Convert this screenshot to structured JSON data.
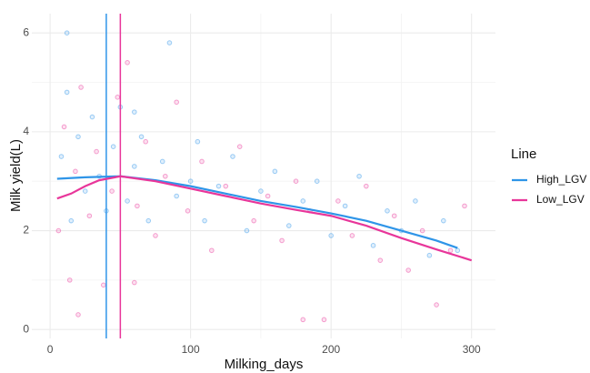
{
  "chart_data": {
    "type": "scatter",
    "x_label": "Milking_days",
    "y_label": "Milk yield(L)",
    "xlim": [
      -13,
      317
    ],
    "ylim": [
      -0.18,
      6.39
    ],
    "xticks": [
      0,
      100,
      200,
      300
    ],
    "yticks": [
      0,
      2,
      4,
      6
    ],
    "x_minor": [
      50,
      150,
      250
    ],
    "y_minor": [
      1,
      3,
      5
    ],
    "grid": true,
    "legend_title": "Line",
    "legend_position": "right",
    "series": [
      {
        "name": "High_LGV",
        "color": "#2f95e8",
        "x": [
          8,
          12,
          15,
          20,
          25,
          30,
          35,
          40,
          45,
          50,
          55,
          60,
          65,
          70,
          80,
          85,
          90,
          100,
          105,
          110,
          120,
          130,
          140,
          150,
          160,
          170,
          180,
          190,
          200,
          210,
          220,
          230,
          240,
          250,
          260,
          270,
          280,
          290,
          12,
          60
        ],
        "y": [
          3.5,
          4.8,
          2.2,
          3.9,
          2.8,
          4.3,
          3.1,
          2.4,
          3.7,
          4.5,
          2.6,
          3.3,
          3.9,
          2.2,
          3.4,
          5.8,
          2.7,
          3.0,
          3.8,
          2.2,
          2.9,
          3.5,
          2.0,
          2.8,
          3.2,
          2.1,
          2.6,
          3.0,
          1.9,
          2.5,
          3.1,
          1.7,
          2.4,
          2.0,
          2.6,
          1.5,
          2.2,
          1.6,
          6.0,
          4.4
        ],
        "fit_x": [
          5,
          25,
          50,
          75,
          100,
          125,
          150,
          175,
          200,
          225,
          250,
          275,
          290
        ],
        "fit_y": [
          3.05,
          3.08,
          3.1,
          3.02,
          2.9,
          2.75,
          2.6,
          2.48,
          2.35,
          2.2,
          2.0,
          1.8,
          1.65
        ],
        "vline": 40
      },
      {
        "name": "Low_LGV",
        "color": "#e8369a",
        "x": [
          6,
          10,
          14,
          18,
          22,
          28,
          33,
          38,
          44,
          48,
          55,
          62,
          68,
          75,
          82,
          90,
          98,
          108,
          115,
          125,
          135,
          145,
          155,
          165,
          175,
          185,
          195,
          205,
          215,
          225,
          235,
          245,
          255,
          265,
          275,
          285,
          295,
          180,
          20,
          60
        ],
        "y": [
          2.0,
          4.1,
          1.0,
          3.2,
          4.9,
          2.3,
          3.6,
          0.9,
          2.8,
          4.7,
          5.4,
          2.5,
          3.8,
          1.9,
          3.1,
          4.6,
          2.4,
          3.4,
          1.6,
          2.9,
          3.7,
          2.2,
          2.7,
          1.8,
          3.0,
          2.4,
          0.2,
          2.6,
          1.9,
          2.9,
          1.4,
          2.3,
          1.2,
          2.0,
          0.5,
          1.6,
          2.5,
          0.2,
          0.3,
          0.95
        ],
        "fit_x": [
          5,
          15,
          25,
          35,
          50,
          75,
          100,
          125,
          150,
          175,
          200,
          225,
          250,
          275,
          300
        ],
        "fit_y": [
          2.65,
          2.75,
          2.9,
          3.02,
          3.1,
          3.0,
          2.85,
          2.7,
          2.55,
          2.42,
          2.3,
          2.1,
          1.85,
          1.62,
          1.4
        ],
        "vline": 50
      }
    ]
  }
}
